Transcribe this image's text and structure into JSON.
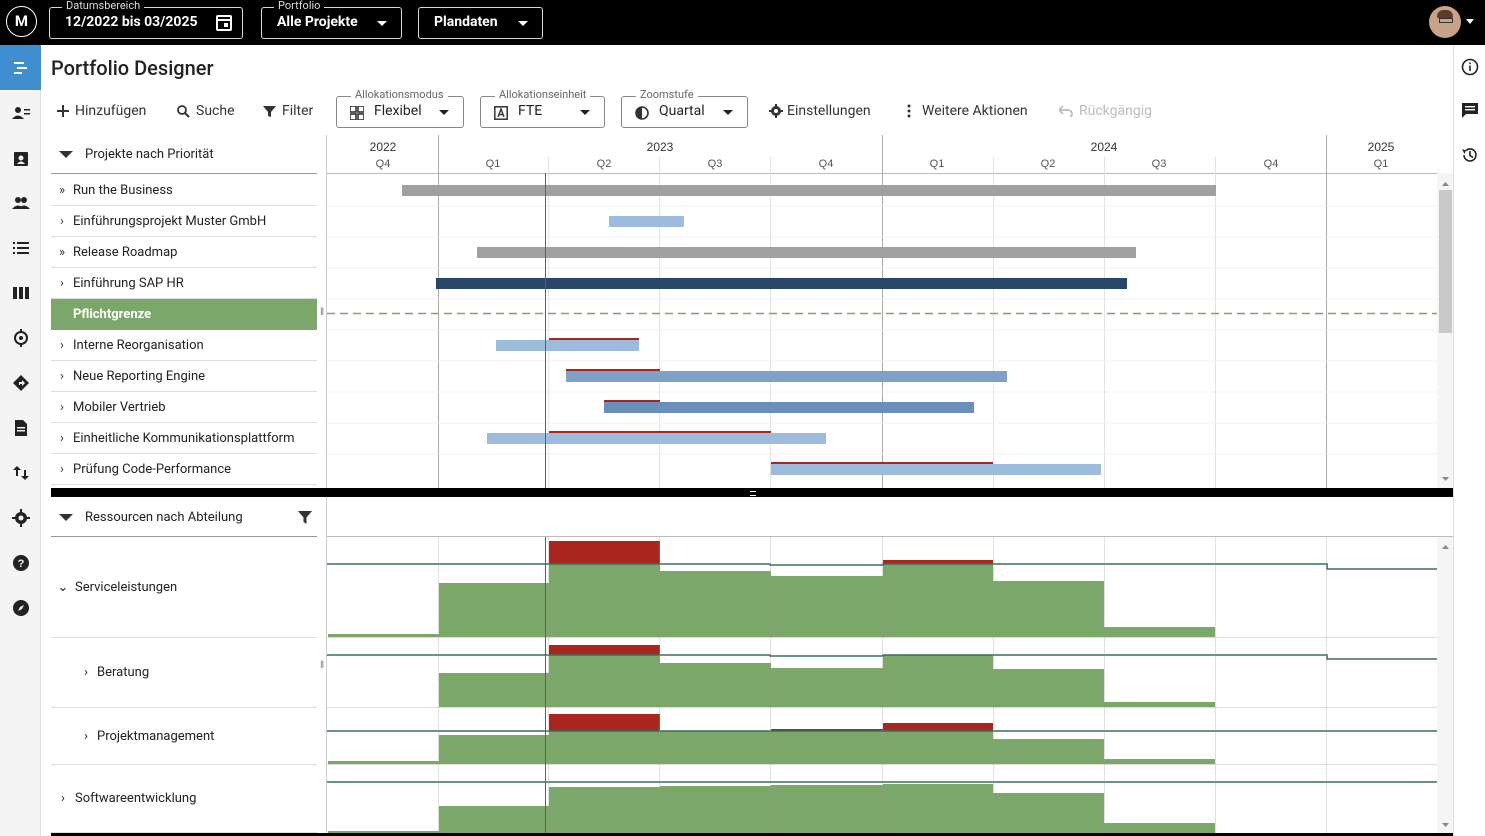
{
  "topbar": {
    "logo": "M",
    "date_range": {
      "label": "Datumsbereich",
      "value": "12/2022 bis 03/2025"
    },
    "portfolio": {
      "label": "Portfolio",
      "value": "Alle Projekte"
    },
    "plan": {
      "value": "Plandaten"
    }
  },
  "page": {
    "title": "Portfolio Designer"
  },
  "toolbar": {
    "add": "Hinzufügen",
    "search": "Suche",
    "filter": "Filter",
    "alloc_mode": {
      "label": "Allokationsmodus",
      "value": "Flexibel"
    },
    "alloc_unit": {
      "label": "Allokationseinheit",
      "value": "FTE"
    },
    "zoom": {
      "label": "Zoomstufe",
      "value": "Quartal"
    },
    "settings": "Einstellungen",
    "more": "Weitere Aktionen",
    "undo": "Rückgängig"
  },
  "projects": {
    "header": "Projekte nach Priorität",
    "rows": [
      {
        "label": "Run the Business",
        "chevron": "»"
      },
      {
        "label": "Einführungsprojekt Muster GmbH",
        "chevron": "›"
      },
      {
        "label": "Release Roadmap",
        "chevron": "»"
      },
      {
        "label": "Einführung SAP HR",
        "chevron": "›"
      },
      {
        "label": "Pflichtgrenze",
        "chevron": ""
      },
      {
        "label": "Interne Reorganisation",
        "chevron": "›"
      },
      {
        "label": "Neue Reporting Engine",
        "chevron": "›"
      },
      {
        "label": "Mobiler Vertrieb",
        "chevron": "›"
      },
      {
        "label": "Einheitliche Kommunikationsplattform",
        "chevron": "›"
      },
      {
        "label": "Prüfung Code-Performance",
        "chevron": "›"
      }
    ]
  },
  "timeline": {
    "years": [
      "2022",
      "2023",
      "2024",
      "2025"
    ],
    "quarters": [
      "Q4",
      "Q1",
      "Q2",
      "Q3",
      "Q4",
      "Q1",
      "Q2",
      "Q3",
      "Q4",
      "Q1"
    ]
  },
  "resources": {
    "header": "Ressourcen nach Abteilung",
    "rows": [
      {
        "label": "Serviceleistungen",
        "chevron": "⌄"
      },
      {
        "label": "Beratung",
        "chevron": "›"
      },
      {
        "label": "Projektmanagement",
        "chevron": "›"
      },
      {
        "label": "Softwareentwicklung",
        "chevron": "›"
      }
    ]
  },
  "colors": {
    "accent": "#3f8fd0",
    "green": "#7ba86a",
    "red": "#a8261d",
    "dark_blue": "#29476b",
    "mid_blue": "#6f93bb",
    "light_blue": "#9dbbdc",
    "gray": "#a0a0a0"
  }
}
